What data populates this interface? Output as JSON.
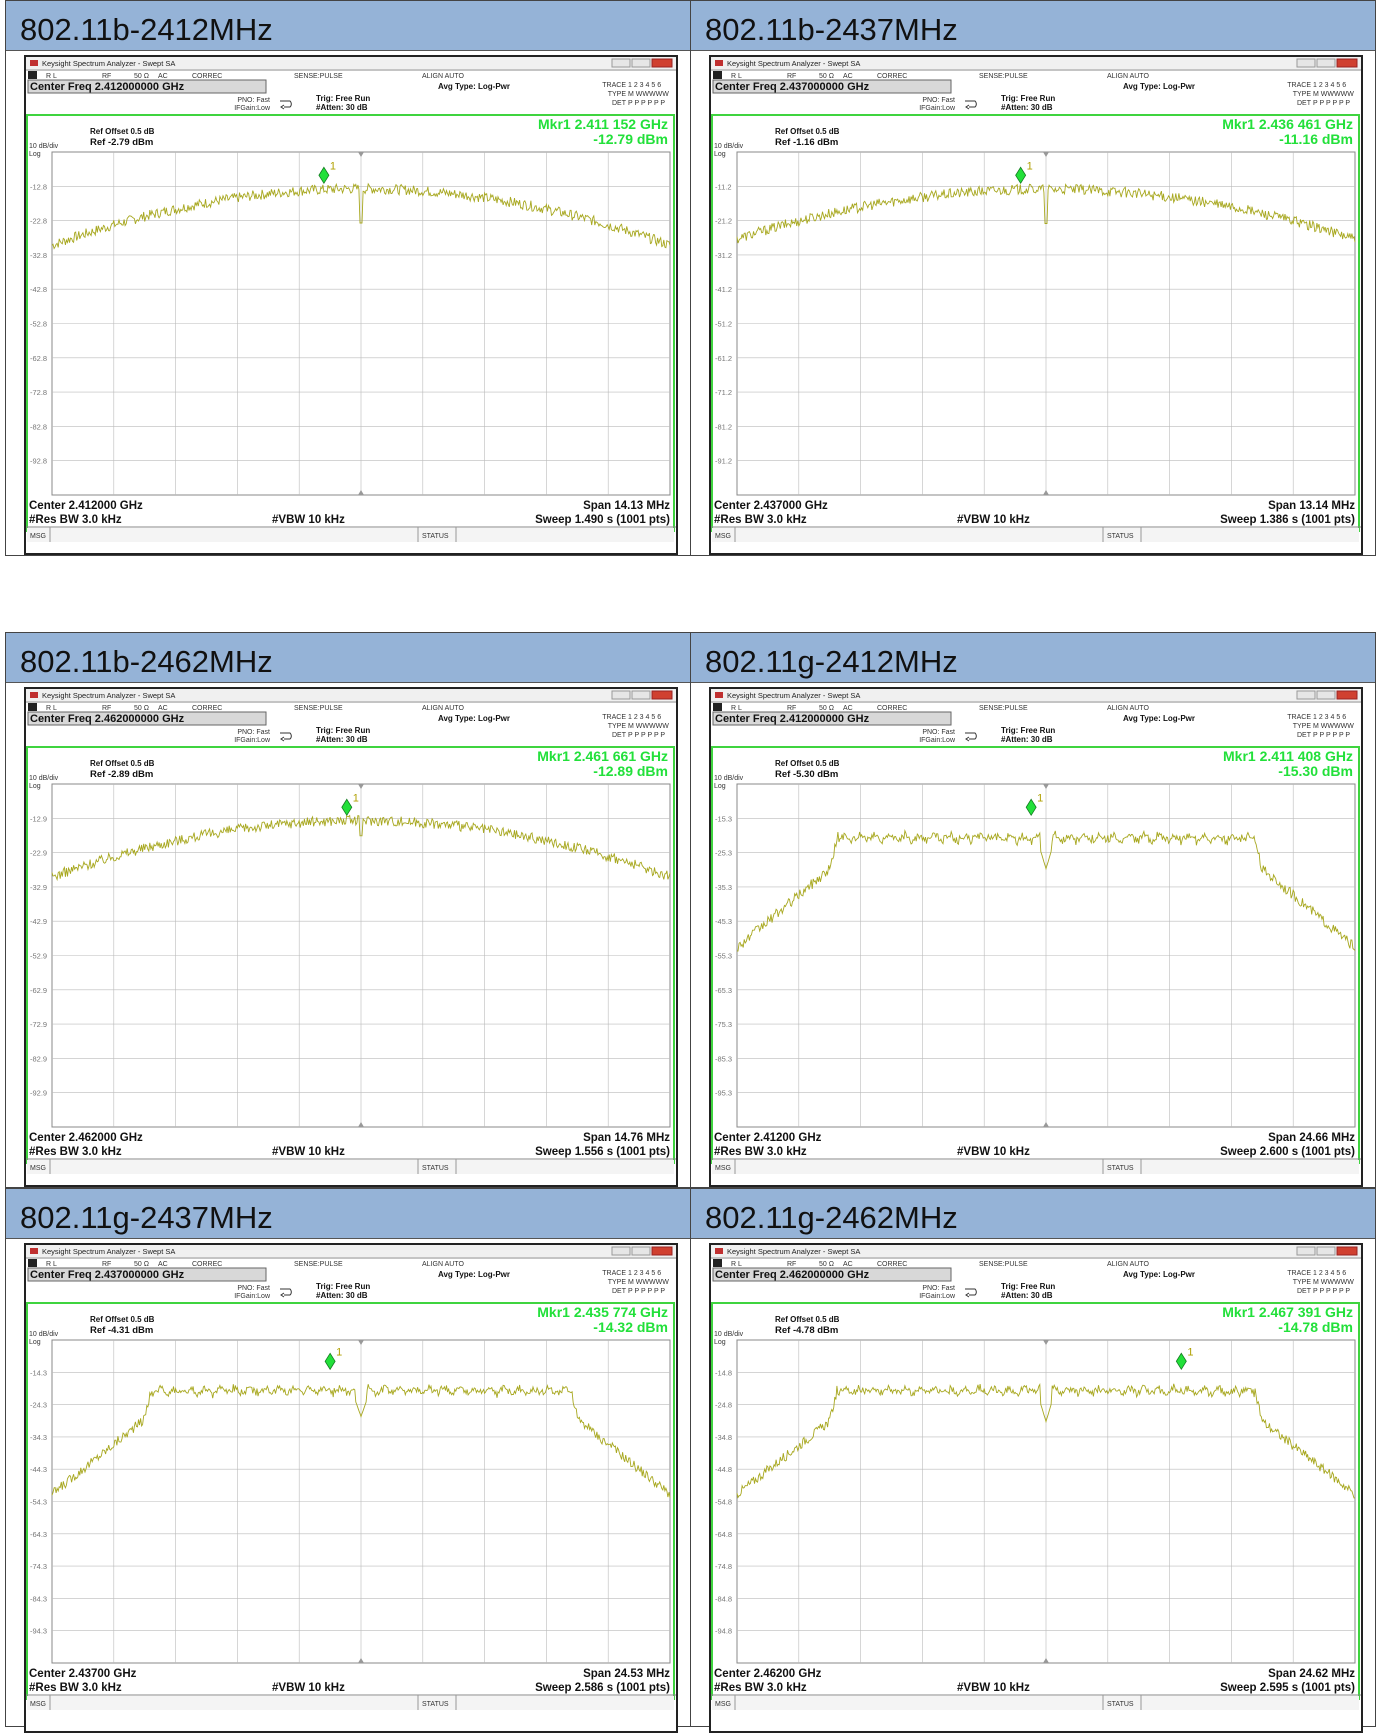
{
  "chart_data": [
    {
      "type": "line",
      "title": "802.11b-2412MHz",
      "window_title": "Keysight Spectrum Analyzer - Swept SA",
      "center_freq_label": "Center Freq 2.412000000 GHz",
      "ref_offset": "Ref Offset 0.5 dB",
      "ref_level": "Ref -2.79 dBm",
      "marker_freq": "Mkr1 2.411 152 GHz",
      "marker_level": "-12.79 dBm",
      "center_label": "Center 2.412000 GHz",
      "span_label": "Span 14.13 MHz",
      "rbw_label": "#Res BW 3.0 kHz",
      "vbw_label": "#VBW 10 kHz",
      "sweep_label": "Sweep  1.490 s (1001 pts)",
      "ytick_labels": [
        "-12.8",
        "-22.8",
        "-32.8",
        "-42.8",
        "-52.8",
        "-62.8",
        "-72.8",
        "-82.8",
        "-92.8"
      ],
      "ref_dbm": -2.79,
      "div_db": 10,
      "center_ghz": 2.412,
      "span_mhz": 14.13,
      "marker_x_mhz": 2411.152,
      "marker_y_dbm": -12.79,
      "shape": "dsss",
      "peak_dbm": -13.5,
      "edge_dbm": -30.0,
      "dip_dbm": -23.5
    },
    {
      "type": "line",
      "title": "802.11b-2437MHz",
      "window_title": "Keysight Spectrum Analyzer - Swept SA",
      "center_freq_label": "Center Freq 2.437000000 GHz",
      "ref_offset": "Ref Offset 0.5 dB",
      "ref_level": "Ref -1.16 dBm",
      "marker_freq": "Mkr1 2.436 461 GHz",
      "marker_level": "-11.16 dBm",
      "center_label": "Center 2.437000 GHz",
      "span_label": "Span 13.14 MHz",
      "rbw_label": "#Res BW 3.0 kHz",
      "vbw_label": "#VBW 10 kHz",
      "sweep_label": "Sweep  1.386 s (1001 pts)",
      "ytick_labels": [
        "-11.2",
        "-21.2",
        "-31.2",
        "-41.2",
        "-51.2",
        "-61.2",
        "-71.2",
        "-81.2",
        "-91.2"
      ],
      "ref_dbm": -1.16,
      "div_db": 10,
      "center_ghz": 2.437,
      "span_mhz": 13.14,
      "marker_x_mhz": 2436.461,
      "marker_y_dbm": -11.16,
      "shape": "dsss",
      "peak_dbm": -12.0,
      "edge_dbm": -26.5,
      "dip_dbm": -22.0
    },
    {
      "type": "line",
      "title": "802.11b-2462MHz",
      "window_title": "Keysight Spectrum Analyzer - Swept SA",
      "center_freq_label": "Center Freq 2.462000000 GHz",
      "ref_offset": "Ref Offset 0.5 dB",
      "ref_level": "Ref -2.89 dBm",
      "marker_freq": "Mkr1 2.461 661 GHz",
      "marker_level": "-12.89 dBm",
      "center_label": "Center 2.462000 GHz",
      "span_label": "Span 14.76 MHz",
      "rbw_label": "#Res BW 3.0 kHz",
      "vbw_label": "#VBW 10 kHz",
      "sweep_label": "Sweep  1.556 s (1001 pts)",
      "ytick_labels": [
        "-12.9",
        "-22.9",
        "-32.9",
        "-42.9",
        "-52.9",
        "-62.9",
        "-72.9",
        "-82.9",
        "-92.9"
      ],
      "ref_dbm": -2.89,
      "div_db": 10,
      "center_ghz": 2.462,
      "span_mhz": 14.76,
      "marker_x_mhz": 2461.661,
      "marker_y_dbm": -12.89,
      "shape": "dsss",
      "peak_dbm": -13.5,
      "edge_dbm": -30.0,
      "dip_dbm": -18.0
    },
    {
      "type": "line",
      "title": "802.11g-2412MHz",
      "window_title": "Keysight Spectrum Analyzer - Swept SA",
      "center_freq_label": "Center Freq 2.412000000 GHz",
      "ref_offset": "Ref Offset 0.5 dB",
      "ref_level": "Ref -5.30 dBm",
      "marker_freq": "Mkr1 2.411 408 GHz",
      "marker_level": "-15.30 dBm",
      "center_label": "Center 2.41200 GHz",
      "span_label": "Span 24.66 MHz",
      "rbw_label": "#Res BW 3.0 kHz",
      "vbw_label": "#VBW 10 kHz",
      "sweep_label": "Sweep  2.600 s (1001 pts)",
      "ytick_labels": [
        "-15.3",
        "-25.3",
        "-35.3",
        "-45.3",
        "-55.3",
        "-65.3",
        "-75.3",
        "-85.3",
        "-95.3"
      ],
      "ref_dbm": -5.3,
      "div_db": 10,
      "center_ghz": 2.412,
      "span_mhz": 24.66,
      "marker_x_mhz": 2411.408,
      "marker_y_dbm": -15.3,
      "shape": "ofdm",
      "plateau_dbm": -20.0,
      "shoulder_dbm": -30.0,
      "edge_dbm": -53.0,
      "dip_dbm": -30.0,
      "occupied_mhz": 16.6
    },
    {
      "type": "line",
      "title": "802.11g-2437MHz",
      "window_title": "Keysight Spectrum Analyzer - Swept SA",
      "center_freq_label": "Center Freq 2.437000000 GHz",
      "ref_offset": "Ref Offset 0.5 dB",
      "ref_level": "Ref -4.31 dBm",
      "marker_freq": "Mkr1 2.435 774 GHz",
      "marker_level": "-14.32 dBm",
      "center_label": "Center 2.43700 GHz",
      "span_label": "Span 24.53 MHz",
      "rbw_label": "#Res BW 3.0 kHz",
      "vbw_label": "#VBW 10 kHz",
      "sweep_label": "Sweep  2.586 s (1001 pts)",
      "ytick_labels": [
        "-14.3",
        "-24.3",
        "-34.3",
        "-44.3",
        "-54.3",
        "-64.3",
        "-74.3",
        "-84.3",
        "-94.3"
      ],
      "ref_dbm": -4.31,
      "div_db": 10,
      "center_ghz": 2.437,
      "span_mhz": 24.53,
      "marker_x_mhz": 2435.774,
      "marker_y_dbm": -14.32,
      "shape": "ofdm",
      "plateau_dbm": -19.0,
      "shoulder_dbm": -29.0,
      "edge_dbm": -52.0,
      "dip_dbm": -28.0,
      "occupied_mhz": 16.6
    },
    {
      "type": "line",
      "title": "802.11g-2462MHz",
      "window_title": "Keysight Spectrum Analyzer - Swept SA",
      "center_freq_label": "Center Freq 2.462000000 GHz",
      "ref_offset": "Ref Offset 0.5 dB",
      "ref_level": "Ref -4.78 dBm",
      "marker_freq": "Mkr1 2.467 391 GHz",
      "marker_level": "-14.78 dBm",
      "center_label": "Center 2.46200 GHz",
      "span_label": "Span 24.62 MHz",
      "rbw_label": "#Res BW 3.0 kHz",
      "vbw_label": "#VBW 10 kHz",
      "sweep_label": "Sweep  2.595 s (1001 pts)",
      "ytick_labels": [
        "-14.8",
        "-24.8",
        "-34.8",
        "-44.8",
        "-54.8",
        "-64.8",
        "-74.8",
        "-84.8",
        "-94.8"
      ],
      "ref_dbm": -4.78,
      "div_db": 10,
      "center_ghz": 2.462,
      "span_mhz": 24.62,
      "marker_x_mhz": 2467.391,
      "marker_y_dbm": -14.78,
      "shape": "ofdm",
      "plateau_dbm": -19.5,
      "shoulder_dbm": -30.0,
      "edge_dbm": -52.5,
      "dip_dbm": -30.0,
      "occupied_mhz": 16.6
    }
  ],
  "window": {
    "rl": "R L",
    "rf": "RF",
    "ohm": "50 Ω",
    "ac": "AC",
    "correc": "CORREC",
    "sense": "SENSE:PULSE",
    "align": "ALIGN AUTO",
    "avg_type": "Avg Type: Log-Pwr",
    "pno": "PNO: Fast",
    "ifgain": "IFGain:Low",
    "trig": "Trig: Free Run",
    "atten": "#Atten: 30 dB",
    "trace": "TRACE",
    "trace_nums": "1 2 3 4 5 6",
    "type": "TYPE",
    "type_val": "M WWWWW",
    "det": "DET",
    "det_val": "P P P P P P",
    "scale": "10 dB/div",
    "log": "Log",
    "marker_num": "1",
    "msg": "MSG",
    "status": "STATUS"
  },
  "colors": {
    "trace": "#a8a820",
    "marker": "#22e03a",
    "green_frame": "#3fd43f",
    "header": "#95b3d7",
    "grid": "#bbbbbb"
  }
}
